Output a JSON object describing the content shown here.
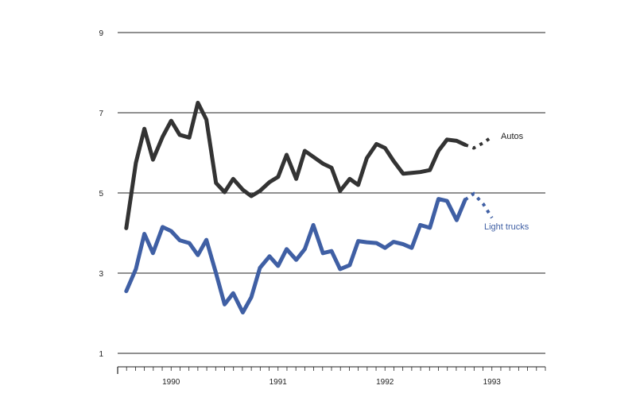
{
  "chart_data": {
    "type": "line",
    "title": "",
    "xlabel": "",
    "ylabel": "",
    "ylim": [
      1,
      9
    ],
    "y_ticks": [
      1,
      3,
      5,
      7,
      9
    ],
    "x_range": [
      1989.5,
      1993.5
    ],
    "x_tick_labels": [
      {
        "label": "1990",
        "x": 1990.0
      },
      {
        "label": "1991",
        "x": 1991.0
      },
      {
        "label": "1992",
        "x": 1992.0
      },
      {
        "label": "1993",
        "x": 1993.0
      }
    ],
    "grid": true,
    "colors": {
      "autos": "#333333",
      "light_trucks": "#3f5fa4",
      "axis": "#222222"
    },
    "series": [
      {
        "name": "Autos",
        "values": [
          [
            1989.58,
            4.12
          ],
          [
            1989.67,
            5.75
          ],
          [
            1989.75,
            6.6
          ],
          [
            1989.83,
            5.83
          ],
          [
            1989.92,
            6.4
          ],
          [
            1990.0,
            6.8
          ],
          [
            1990.08,
            6.45
          ],
          [
            1990.17,
            6.38
          ],
          [
            1990.25,
            7.25
          ],
          [
            1990.33,
            6.83
          ],
          [
            1990.42,
            5.25
          ],
          [
            1990.5,
            5.02
          ],
          [
            1990.58,
            5.35
          ],
          [
            1990.67,
            5.08
          ],
          [
            1990.75,
            4.92
          ],
          [
            1990.83,
            5.05
          ],
          [
            1990.92,
            5.27
          ],
          [
            1991.0,
            5.4
          ],
          [
            1991.08,
            5.95
          ],
          [
            1991.17,
            5.35
          ],
          [
            1991.25,
            6.05
          ],
          [
            1991.33,
            5.9
          ],
          [
            1991.42,
            5.73
          ],
          [
            1991.5,
            5.63
          ],
          [
            1991.58,
            5.05
          ],
          [
            1991.67,
            5.35
          ],
          [
            1991.75,
            5.2
          ],
          [
            1991.83,
            5.87
          ],
          [
            1991.92,
            6.22
          ],
          [
            1992.0,
            6.12
          ],
          [
            1992.08,
            5.8
          ],
          [
            1992.17,
            5.48
          ],
          [
            1992.25,
            5.5
          ],
          [
            1992.33,
            5.52
          ],
          [
            1992.42,
            5.57
          ],
          [
            1992.5,
            6.05
          ],
          [
            1992.58,
            6.33
          ],
          [
            1992.67,
            6.3
          ],
          [
            1992.75,
            6.2
          ]
        ],
        "forecast": [
          [
            1992.75,
            6.2
          ],
          [
            1992.83,
            6.12
          ],
          [
            1992.92,
            6.25
          ],
          [
            1993.0,
            6.4
          ]
        ]
      },
      {
        "name": "Light trucks",
        "values": [
          [
            1989.58,
            2.55
          ],
          [
            1989.67,
            3.1
          ],
          [
            1989.75,
            3.98
          ],
          [
            1989.83,
            3.5
          ],
          [
            1989.92,
            4.15
          ],
          [
            1990.0,
            4.05
          ],
          [
            1990.08,
            3.82
          ],
          [
            1990.17,
            3.75
          ],
          [
            1990.25,
            3.45
          ],
          [
            1990.33,
            3.83
          ],
          [
            1990.42,
            3.0
          ],
          [
            1990.5,
            2.22
          ],
          [
            1990.58,
            2.5
          ],
          [
            1990.67,
            2.02
          ],
          [
            1990.75,
            2.4
          ],
          [
            1990.83,
            3.13
          ],
          [
            1990.92,
            3.42
          ],
          [
            1991.0,
            3.18
          ],
          [
            1991.08,
            3.6
          ],
          [
            1991.17,
            3.33
          ],
          [
            1991.25,
            3.6
          ],
          [
            1991.33,
            4.2
          ],
          [
            1991.42,
            3.5
          ],
          [
            1991.5,
            3.55
          ],
          [
            1991.58,
            3.1
          ],
          [
            1991.67,
            3.2
          ],
          [
            1991.75,
            3.8
          ],
          [
            1991.83,
            3.77
          ],
          [
            1991.92,
            3.75
          ],
          [
            1992.0,
            3.63
          ],
          [
            1992.08,
            3.78
          ],
          [
            1992.17,
            3.72
          ],
          [
            1992.25,
            3.63
          ],
          [
            1992.33,
            4.2
          ],
          [
            1992.42,
            4.13
          ],
          [
            1992.5,
            4.85
          ],
          [
            1992.58,
            4.8
          ],
          [
            1992.67,
            4.32
          ],
          [
            1992.75,
            4.83
          ]
        ],
        "forecast": [
          [
            1992.75,
            4.83
          ],
          [
            1992.83,
            4.98
          ],
          [
            1992.92,
            4.72
          ],
          [
            1993.0,
            4.38
          ]
        ]
      }
    ],
    "annotations": [
      "Autos",
      "Light trucks"
    ]
  }
}
